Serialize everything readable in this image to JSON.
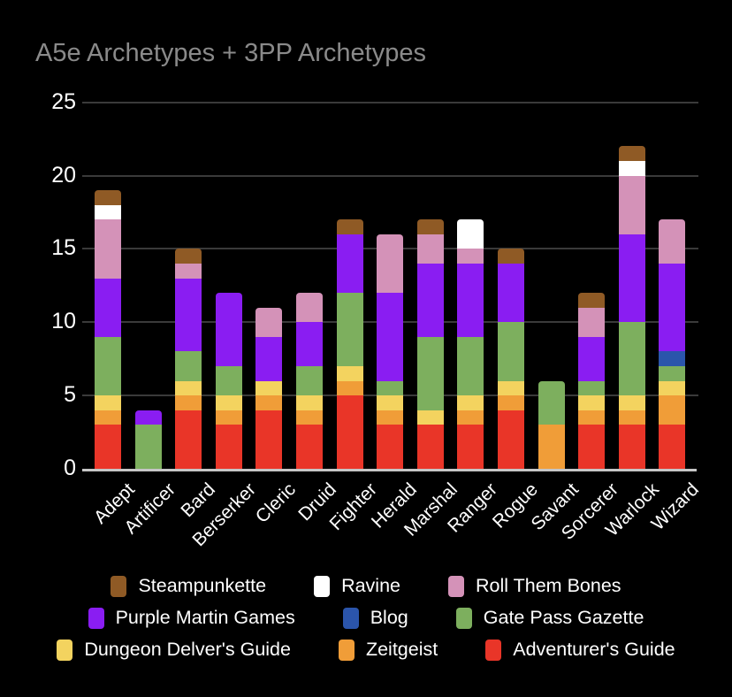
{
  "title": "A5e Archetypes + 3PP Archetypes",
  "colors": {
    "background": "#000000",
    "title_text": "#8a8a8a",
    "axis_text": "#ffffff",
    "gridline": "#3a3a3a",
    "axis_line": "#c6c6c6"
  },
  "chart_data": {
    "type": "bar",
    "stacked": true,
    "title": "A5e Archetypes + 3PP Archetypes",
    "xlabel": "",
    "ylabel": "",
    "ylim": [
      0,
      25
    ],
    "yticks": [
      0,
      5,
      10,
      15,
      20,
      25
    ],
    "grid": true,
    "legend_position": "bottom",
    "categories": [
      "Adept",
      "Artificer",
      "Bard",
      "Berserker",
      "Cleric",
      "Druid",
      "Fighter",
      "Herald",
      "Marshal",
      "Ranger",
      "Rogue",
      "Savant",
      "Sorcerer",
      "Warlock",
      "Wizard"
    ],
    "series": [
      {
        "name": "Adventurer's Guide",
        "color": "#e93528",
        "values": [
          3,
          0,
          4,
          3,
          4,
          3,
          5,
          3,
          3,
          3,
          4,
          0,
          3,
          3,
          3
        ]
      },
      {
        "name": "Zeitgeist",
        "color": "#f09d38",
        "values": [
          1,
          0,
          1,
          1,
          1,
          1,
          1,
          1,
          0,
          1,
          1,
          3,
          1,
          1,
          2
        ]
      },
      {
        "name": "Dungeon Delver's Guide",
        "color": "#f3d35f",
        "values": [
          1,
          0,
          1,
          1,
          1,
          1,
          1,
          1,
          1,
          1,
          1,
          0,
          1,
          1,
          1
        ]
      },
      {
        "name": "Gate Pass Gazette",
        "color": "#7daf5e",
        "values": [
          4,
          3,
          2,
          2,
          0,
          2,
          5,
          1,
          5,
          4,
          4,
          3,
          1,
          5,
          1
        ]
      },
      {
        "name": "Blog",
        "color": "#2b55ab",
        "values": [
          0,
          0,
          0,
          0,
          0,
          0,
          0,
          0,
          0,
          0,
          0,
          0,
          0,
          0,
          1
        ]
      },
      {
        "name": "Purple Martin Games",
        "color": "#8a1df2",
        "values": [
          4,
          1,
          5,
          5,
          3,
          3,
          4,
          6,
          5,
          5,
          4,
          0,
          3,
          6,
          6
        ]
      },
      {
        "name": "Roll Them Bones",
        "color": "#d492b8",
        "values": [
          4,
          0,
          1,
          0,
          2,
          2,
          0,
          4,
          2,
          1,
          0,
          0,
          2,
          4,
          3
        ]
      },
      {
        "name": "Ravine",
        "color": "#ffffff",
        "values": [
          1,
          0,
          0,
          0,
          0,
          0,
          0,
          0,
          0,
          2,
          0,
          0,
          0,
          1,
          0
        ]
      },
      {
        "name": "Steampunkette",
        "color": "#8f5a25",
        "values": [
          1,
          0,
          1,
          0,
          0,
          0,
          1,
          0,
          1,
          0,
          1,
          0,
          1,
          1,
          0
        ]
      }
    ],
    "totals": [
      19,
      4,
      15,
      12,
      11,
      12,
      17,
      16,
      17,
      17,
      15,
      6,
      12,
      22,
      17
    ],
    "legend_rows": [
      [
        "Steampunkette",
        "Ravine",
        "Roll Them Bones"
      ],
      [
        "Purple Martin Games",
        "Blog",
        "Gate Pass Gazette"
      ],
      [
        "Dungeon Delver's Guide",
        "Zeitgeist",
        "Adventurer's Guide"
      ]
    ]
  }
}
